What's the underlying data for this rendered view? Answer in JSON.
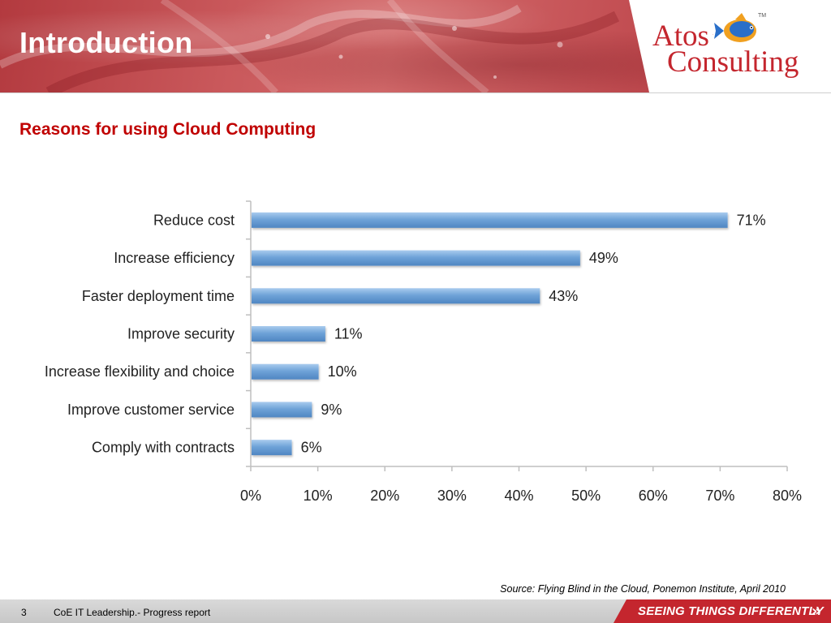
{
  "header": {
    "title": "Introduction",
    "logo": {
      "line1": "Atos",
      "line2": "Consulting",
      "trademark": "TM",
      "icon": "fish-logo-icon"
    }
  },
  "subtitle": "Reasons for using Cloud Computing",
  "chart_data": {
    "type": "bar",
    "orientation": "horizontal",
    "categories": [
      "Reduce cost",
      "Increase efficiency",
      "Faster deployment time",
      "Improve security",
      "Increase flexibility and choice",
      "Improve customer service",
      "Comply with contracts"
    ],
    "values": [
      71,
      49,
      43,
      11,
      10,
      9,
      6
    ],
    "value_labels": [
      "71%",
      "49%",
      "43%",
      "11%",
      "10%",
      "9%",
      "6%"
    ],
    "xlim": [
      0,
      80
    ],
    "xticks": [
      0,
      10,
      20,
      30,
      40,
      50,
      60,
      70,
      80
    ],
    "xtick_labels": [
      "0%",
      "10%",
      "20%",
      "30%",
      "40%",
      "50%",
      "60%",
      "70%",
      "80%"
    ],
    "title": "",
    "xlabel": "",
    "ylabel": "",
    "grid": false,
    "bar_color": "#6fa3d8"
  },
  "source": "Source: Flying Blind in the Cloud, Ponemon Institute, April 2010",
  "footer": {
    "page": "3",
    "text": "CoE IT Leadership.- Progress report",
    "slogan": "SEEING THINGS DIFFERENTLY",
    "slogan_icon": "double-chevron-right-icon",
    "accent": "#c4262e"
  }
}
